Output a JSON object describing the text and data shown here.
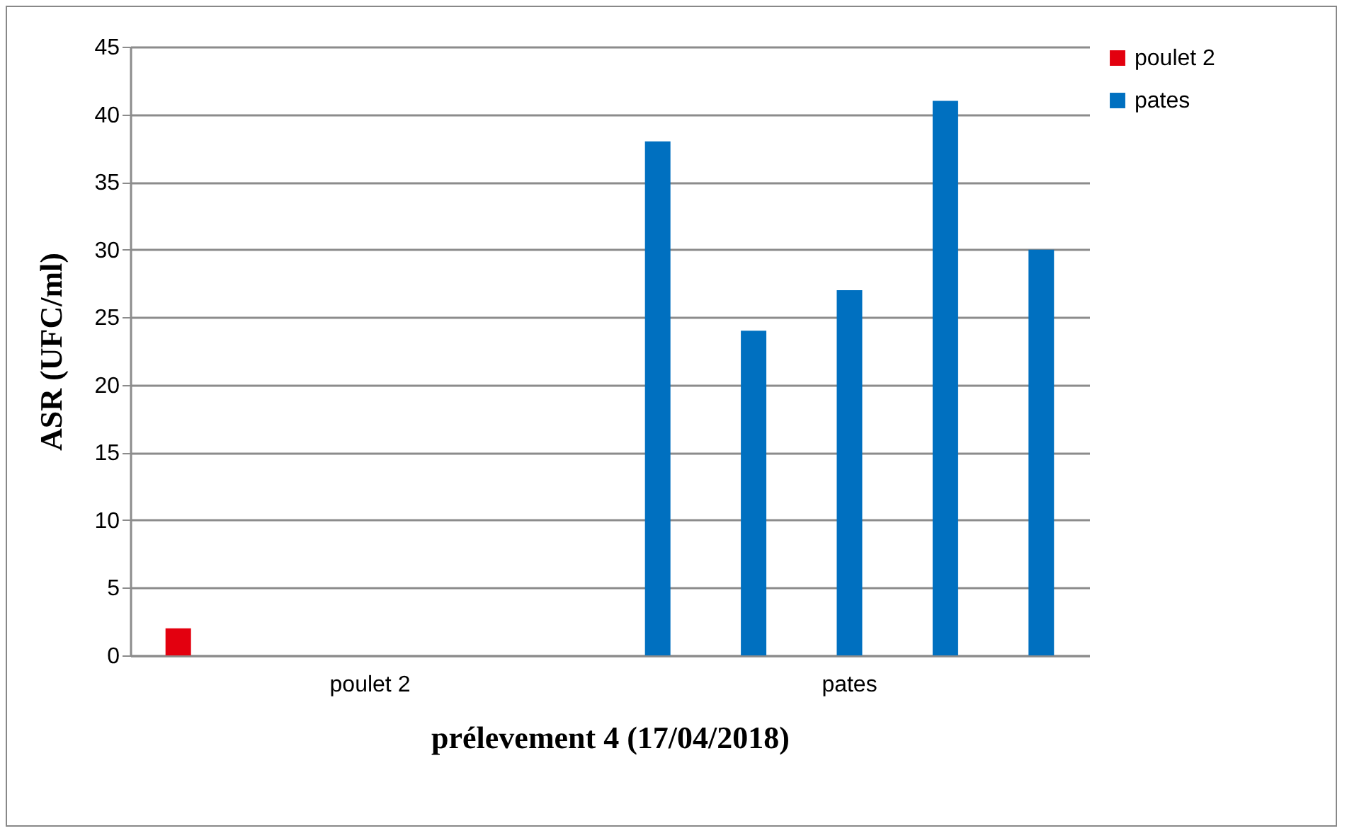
{
  "chart_data": {
    "type": "bar",
    "xlabel": "prélevement 4 (17/04/2018)",
    "ylabel": "ASR (UFC/ml)",
    "categories": [
      null,
      null,
      "poulet 2",
      null,
      null,
      null,
      null,
      "pates",
      null,
      null
    ],
    "series": [
      {
        "name": "poulet 2",
        "color": "#e3000f",
        "values": [
          2,
          null,
          null,
          null,
          null,
          null,
          null,
          null,
          null,
          null
        ]
      },
      {
        "name": "pates",
        "color": "#0070c0",
        "values": [
          null,
          null,
          null,
          null,
          null,
          38,
          24,
          27,
          41,
          30
        ]
      }
    ],
    "ylim": [
      0,
      45
    ],
    "yticks": [
      0,
      5,
      10,
      15,
      20,
      25,
      30,
      35,
      40,
      45
    ],
    "grid": "y",
    "legend": "right"
  }
}
